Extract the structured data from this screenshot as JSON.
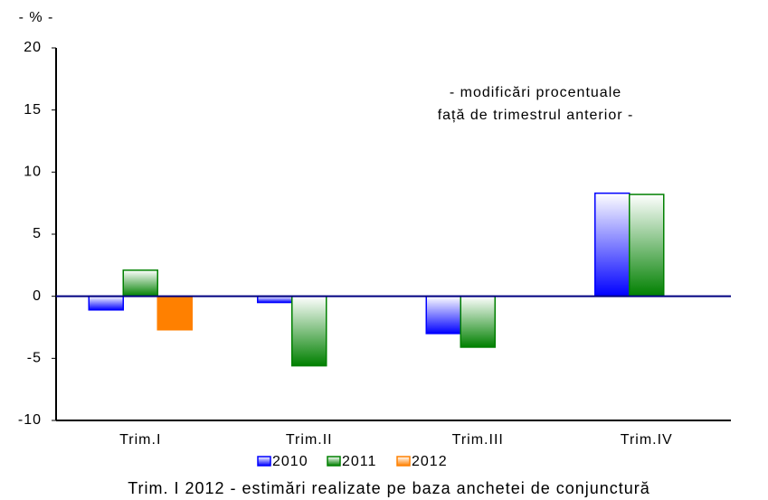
{
  "chart_data": {
    "type": "bar",
    "y_unit": "- % -",
    "annotation": [
      "- modificări procentuale",
      "față de trimestrul anterior -"
    ],
    "footnote": "Trim. I 2012 - estimări realizate pe baza anchetei de conjunctură",
    "categories": [
      "Trim.I",
      "Trim.II",
      "Trim.III",
      "Trim.IV"
    ],
    "series": [
      {
        "name": "2010",
        "color": "#0000ff",
        "values": [
          -1.1,
          -0.5,
          -3.0,
          8.3
        ]
      },
      {
        "name": "2011",
        "color": "#008000",
        "values": [
          2.1,
          -5.6,
          -4.1,
          8.2
        ]
      },
      {
        "name": "2012",
        "color": "#ff8000",
        "values": [
          -2.7,
          null,
          null,
          null
        ]
      }
    ],
    "ylim": [
      -10,
      20
    ],
    "yticks": [
      -10,
      -5,
      0,
      5,
      10,
      15,
      20
    ],
    "legend": "bottom"
  }
}
